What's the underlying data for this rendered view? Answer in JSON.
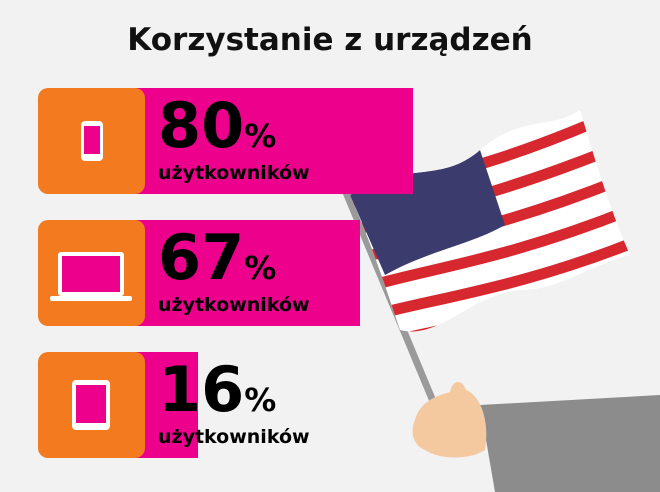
{
  "title": "Korzystanie z urządzeń",
  "items": [
    {
      "value": 80,
      "unit": "%",
      "label": "użytkowników"
    },
    {
      "value": 67,
      "unit": "%",
      "label": "użytkowników"
    },
    {
      "value": 16,
      "unit": "%",
      "label": "użytkowników"
    }
  ]
}
